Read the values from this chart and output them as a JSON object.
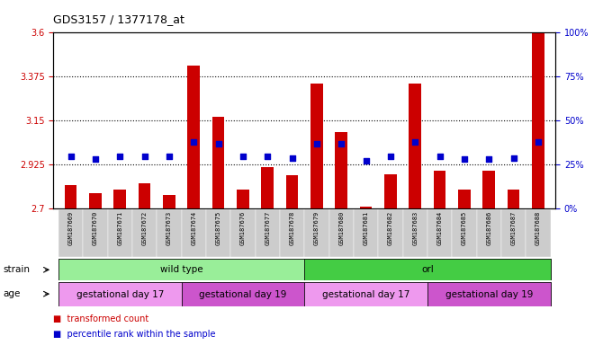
{
  "title": "GDS3157 / 1377178_at",
  "samples": [
    "GSM187669",
    "GSM187670",
    "GSM187671",
    "GSM187672",
    "GSM187673",
    "GSM187674",
    "GSM187675",
    "GSM187676",
    "GSM187677",
    "GSM187678",
    "GSM187679",
    "GSM187680",
    "GSM187681",
    "GSM187682",
    "GSM187683",
    "GSM187684",
    "GSM187685",
    "GSM187686",
    "GSM187687",
    "GSM187688"
  ],
  "transformed_count": [
    2.82,
    2.78,
    2.8,
    2.83,
    2.77,
    3.43,
    3.17,
    2.8,
    2.915,
    2.87,
    3.34,
    3.09,
    2.71,
    2.875,
    3.34,
    2.895,
    2.8,
    2.895,
    2.8,
    3.6
  ],
  "percentile_rank": [
    30,
    28,
    30,
    30,
    30,
    38,
    37,
    30,
    30,
    29,
    37,
    37,
    27,
    30,
    38,
    30,
    28,
    28,
    29,
    38
  ],
  "ylim_left": [
    2.7,
    3.6
  ],
  "ylim_right": [
    0,
    100
  ],
  "yticks_left": [
    2.7,
    2.925,
    3.15,
    3.375,
    3.6
  ],
  "yticks_right": [
    0,
    25,
    50,
    75,
    100
  ],
  "hlines": [
    2.925,
    3.15,
    3.375
  ],
  "bar_color": "#cc0000",
  "dot_color": "#0000cc",
  "bar_width": 0.5,
  "strain_labels": [
    {
      "label": "wild type",
      "start": 0,
      "end": 9,
      "color": "#99ee99"
    },
    {
      "label": "orl",
      "start": 10,
      "end": 19,
      "color": "#44cc44"
    }
  ],
  "age_labels": [
    {
      "label": "gestational day 17",
      "start": 0,
      "end": 4,
      "color": "#ee99ee"
    },
    {
      "label": "gestational day 19",
      "start": 5,
      "end": 9,
      "color": "#cc55cc"
    },
    {
      "label": "gestational day 17",
      "start": 10,
      "end": 14,
      "color": "#ee99ee"
    },
    {
      "label": "gestational day 19",
      "start": 15,
      "end": 19,
      "color": "#cc55cc"
    }
  ],
  "tick_color_left": "#cc0000",
  "tick_color_right": "#0000cc",
  "xlabel_area_color": "#cccccc"
}
